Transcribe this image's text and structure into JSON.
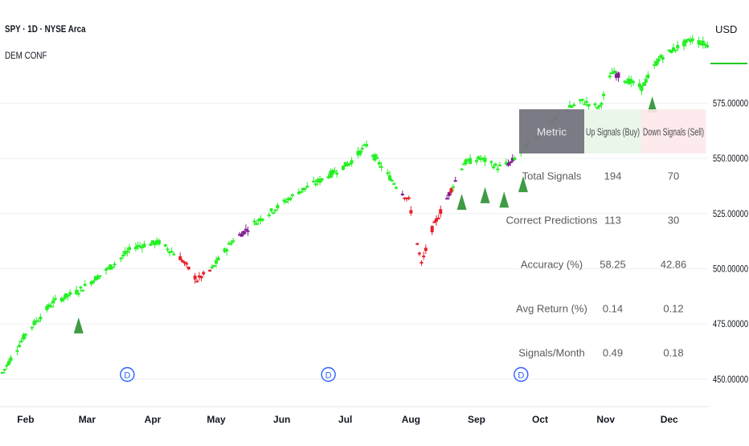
{
  "chart": {
    "symbol_title": "SPY · 1D · NYSE Arca",
    "indicator_title": "DEM CONF",
    "currency": "USD",
    "price_axis_labels": [
      {
        "price": 575,
        "label": "575.00000"
      },
      {
        "price": 550,
        "label": "550.00000"
      },
      {
        "price": 525,
        "label": "525.00000"
      },
      {
        "price": 500,
        "label": "500.00000"
      },
      {
        "price": 475,
        "label": "475.00000"
      },
      {
        "price": 450,
        "label": "450.00000"
      }
    ],
    "time_axis_labels": [
      {
        "label": "Feb",
        "day": 11
      },
      {
        "label": "Mar",
        "day": 40
      },
      {
        "label": "Apr",
        "day": 71
      },
      {
        "label": "May",
        "day": 101
      },
      {
        "label": "Jun",
        "day": 132
      },
      {
        "label": "Jul",
        "day": 162
      },
      {
        "label": "Aug",
        "day": 193
      },
      {
        "label": "Sep",
        "day": 224
      },
      {
        "label": "Oct",
        "day": 254
      },
      {
        "label": "Nov",
        "day": 285
      },
      {
        "label": "Dec",
        "day": 315
      }
    ],
    "dividend_marker_label": "D",
    "dividend_markers": [
      {
        "day": 59
      },
      {
        "day": 154
      },
      {
        "day": 245
      }
    ],
    "buy_signal_days": [
      36,
      217,
      228,
      237,
      246,
      307
    ],
    "colors": {
      "up": "#22f022",
      "down": "#e81e2a",
      "neutral": "#7d1e8f",
      "signal": "#3f9b45",
      "grid": "#eef0f4",
      "dividend": "#2962ff"
    },
    "price_series": {
      "x_unit": "days since Jan 1",
      "points": [
        [
          0,
          453
        ],
        [
          12,
          472
        ],
        [
          24,
          485
        ],
        [
          36,
          490
        ],
        [
          50,
          500
        ],
        [
          62,
          510
        ],
        [
          74,
          512
        ],
        [
          84,
          505
        ],
        [
          92,
          495
        ],
        [
          99,
          500
        ],
        [
          108,
          512
        ],
        [
          118,
          520
        ],
        [
          130,
          528
        ],
        [
          140,
          535
        ],
        [
          150,
          540
        ],
        [
          164,
          548
        ],
        [
          172,
          556
        ],
        [
          180,
          545
        ],
        [
          186,
          538
        ],
        [
          192,
          531
        ],
        [
          198,
          502
        ],
        [
          203,
          518
        ],
        [
          210,
          532
        ],
        [
          218,
          548
        ],
        [
          226,
          550
        ],
        [
          234,
          546
        ],
        [
          240,
          548
        ],
        [
          248,
          556
        ],
        [
          258,
          565
        ],
        [
          266,
          572
        ],
        [
          274,
          576
        ],
        [
          282,
          573
        ],
        [
          288,
          589
        ],
        [
          296,
          585
        ],
        [
          302,
          582
        ],
        [
          310,
          595
        ],
        [
          318,
          600
        ],
        [
          326,
          604
        ],
        [
          334,
          601
        ]
      ]
    }
  },
  "signal_table": {
    "headers": [
      "Metric",
      "Up Signals (Buy)",
      "Down Signals (Sell)"
    ],
    "rows": [
      {
        "metric": "Total Signals",
        "up": "194",
        "down": "70"
      },
      {
        "metric": "Correct Predictions",
        "up": "113",
        "down": "30"
      },
      {
        "metric": "Accuracy (%)",
        "up": "58.25",
        "down": "42.86"
      },
      {
        "metric": "Avg Return (%)",
        "up": "0.14",
        "down": "0.12"
      },
      {
        "metric": "Signals/Month",
        "up": "0.49",
        "down": "0.18"
      }
    ]
  }
}
